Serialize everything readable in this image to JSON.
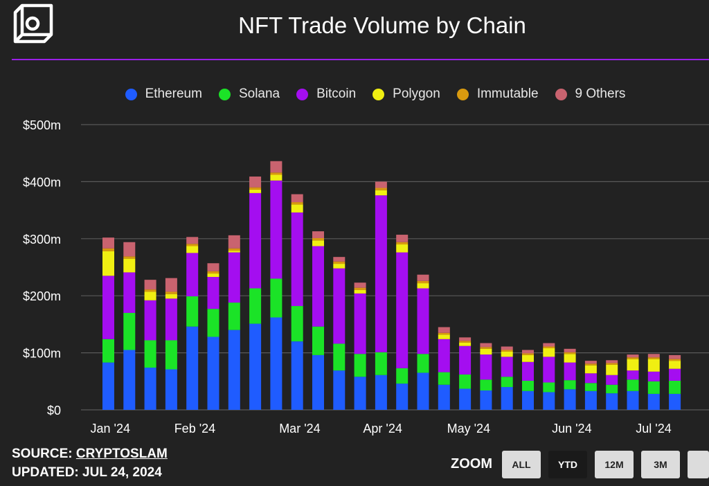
{
  "page": {
    "title": "NFT Trade Volume by Chain"
  },
  "footer": {
    "source_label": "SOURCE:",
    "source_name": "CRYPTOSLAM",
    "updated": "UPDATED: JUL 24, 2024"
  },
  "zoom": {
    "label": "ZOOM",
    "buttons": [
      "ALL",
      "YTD",
      "12M",
      "3M",
      ""
    ],
    "active": "YTD"
  },
  "colors": {
    "background": "#222222",
    "accent_rule": "#9b1fe8",
    "Ethereum": "#1f5cff",
    "Solana": "#1be327",
    "Bitcoin": "#a40ef0",
    "Polygon": "#f0ef12",
    "Immutable": "#d99a0f",
    "9 Others": "#c9636f"
  },
  "chart_data": {
    "type": "bar",
    "stacked": true,
    "title": "NFT Trade Volume by Chain",
    "xlabel": "",
    "ylabel": "",
    "ylim": [
      0,
      500
    ],
    "y_ticks": [
      "$0",
      "$100m",
      "$200m",
      "$300m",
      "$400m",
      "$500m"
    ],
    "x_ticks": [
      "Jan '24",
      "Feb '24",
      "Mar '24",
      "Apr '24",
      "May '24",
      "Jun '24",
      "Jul '24"
    ],
    "x_tick_week_index": [
      0,
      4,
      9,
      13,
      17,
      22,
      26
    ],
    "grid": true,
    "legend_position": "top",
    "series": [
      {
        "name": "Ethereum",
        "values": [
          83,
          105,
          74,
          71,
          146,
          128,
          140,
          151,
          162,
          120,
          96,
          69,
          58,
          61,
          46,
          65,
          44,
          37,
          34,
          40,
          33,
          31,
          36,
          33,
          29,
          33,
          28,
          28
        ]
      },
      {
        "name": "Solana",
        "values": [
          41,
          65,
          48,
          51,
          53,
          49,
          48,
          62,
          68,
          62,
          50,
          47,
          40,
          40,
          27,
          33,
          22,
          25,
          19,
          18,
          18,
          17,
          16,
          14,
          15,
          20,
          22,
          23
        ]
      },
      {
        "name": "Bitcoin",
        "values": [
          111,
          71,
          70,
          73,
          76,
          56,
          88,
          167,
          172,
          164,
          141,
          132,
          106,
          275,
          203,
          115,
          58,
          50,
          44,
          35,
          33,
          45,
          31,
          17,
          17,
          16,
          17,
          21
        ]
      },
      {
        "name": "Polygon",
        "values": [
          43,
          24,
          15,
          8,
          12,
          6,
          3,
          6,
          10,
          14,
          10,
          8,
          6,
          9,
          14,
          9,
          8,
          6,
          10,
          9,
          12,
          15,
          15,
          14,
          18,
          20,
          22,
          14
        ]
      },
      {
        "name": "Immutable",
        "values": [
          5,
          4,
          4,
          4,
          4,
          4,
          4,
          4,
          4,
          4,
          4,
          4,
          4,
          4,
          4,
          4,
          3,
          3,
          3,
          3,
          3,
          3,
          3,
          3,
          3,
          3,
          3,
          3
        ]
      },
      {
        "name": "9 Others",
        "values": [
          19,
          25,
          17,
          24,
          12,
          14,
          23,
          19,
          20,
          14,
          12,
          8,
          9,
          11,
          13,
          11,
          10,
          6,
          7,
          6,
          6,
          6,
          6,
          5,
          5,
          5,
          6,
          7
        ]
      }
    ]
  }
}
